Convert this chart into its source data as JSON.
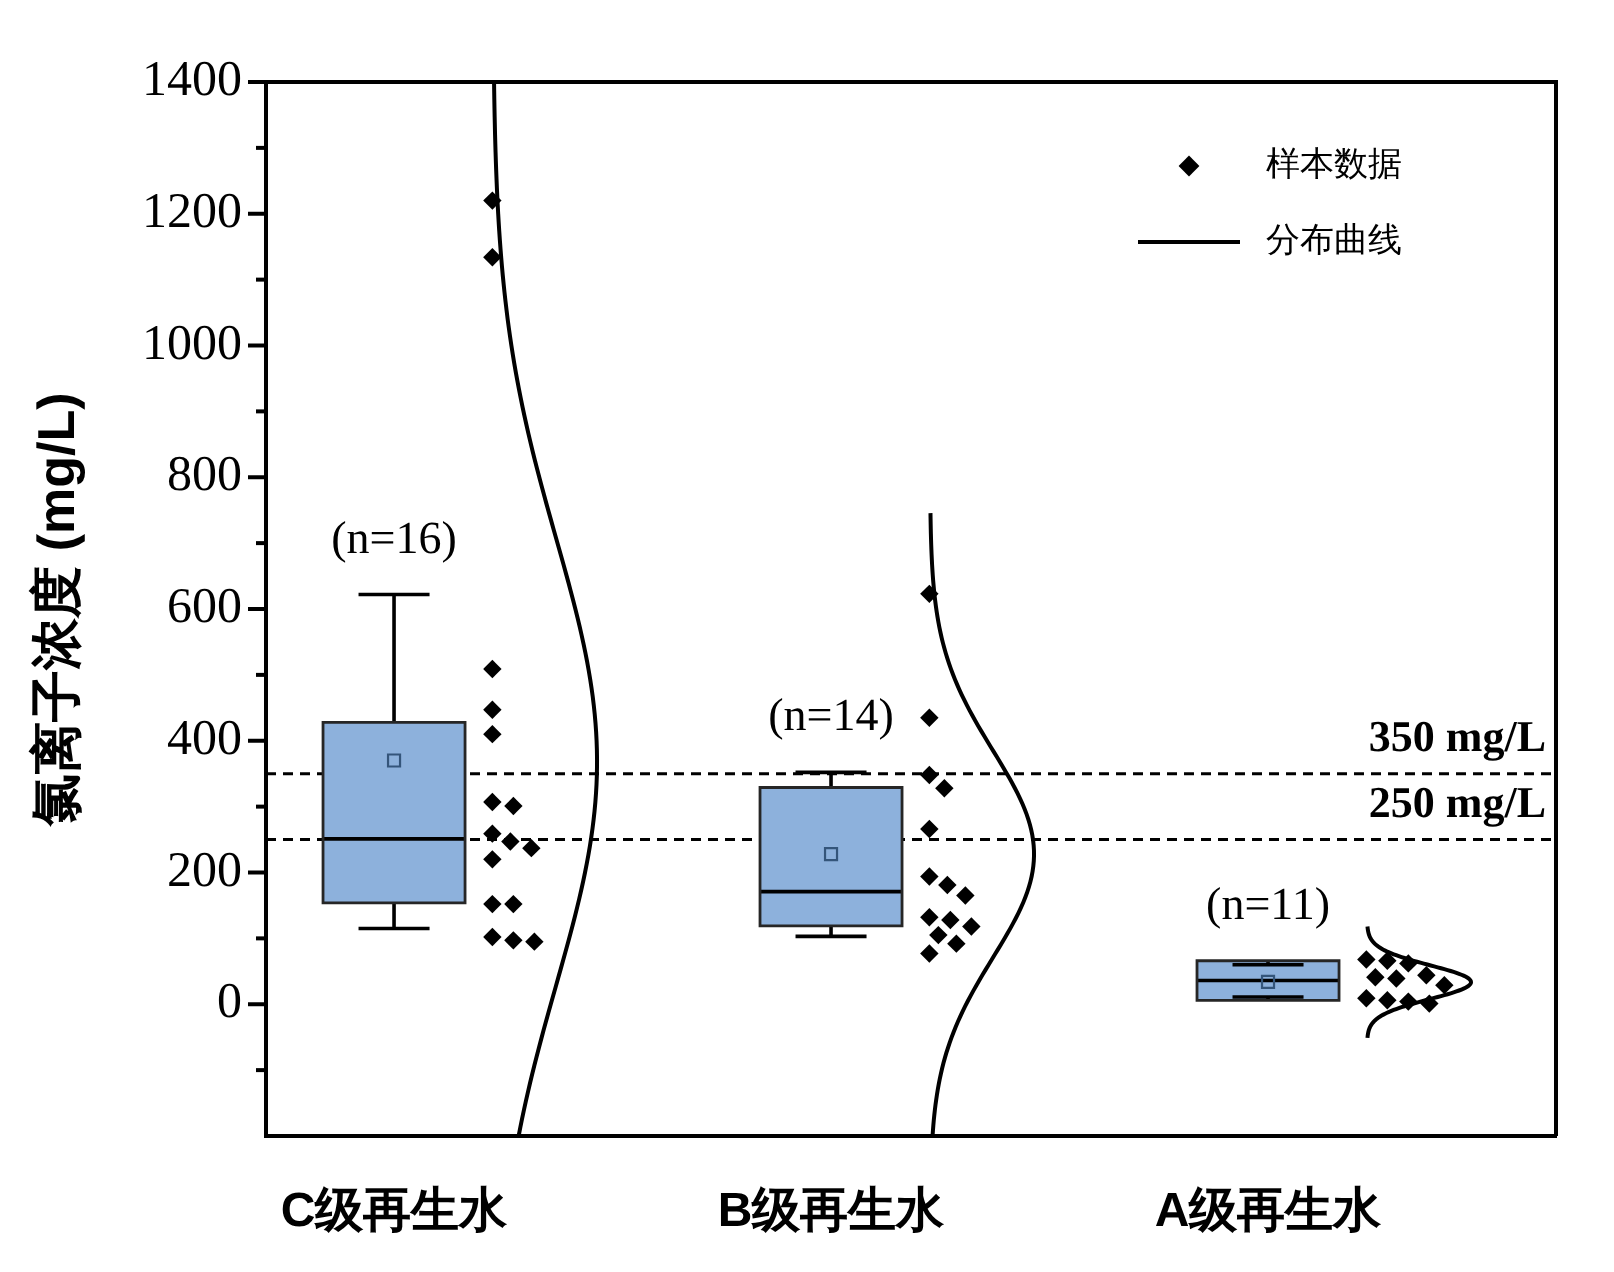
{
  "chart_data": {
    "type": "box",
    "ylabel": "氯离子浓度 (mg/L)",
    "categories": [
      "C级再生水",
      "B级再生水",
      "A级再生水"
    ],
    "series": [
      {
        "type": "box",
        "color": "#8db1dc",
        "boxes": [
          {
            "low": 115,
            "q1": 154,
            "median": 251,
            "q3": 428,
            "high": 622,
            "mean": 370
          },
          {
            "low": 103,
            "q1": 119,
            "median": 171,
            "q3": 329,
            "high": 352,
            "mean": 228
          },
          {
            "low": 11,
            "q1": 6,
            "median": 36,
            "q3": 66,
            "high": 60,
            "mean": 34
          }
        ]
      },
      {
        "name": "样本数据",
        "type": "scatter",
        "color": "#000000",
        "marker": "diamond",
        "x": [
          "C级再生水",
          "C级再生水",
          "C级再生水",
          "C级再生水",
          "C级再生水",
          "C级再生水",
          "C级再生水",
          "C级再生水",
          "C级再生水",
          "C级再生水",
          "C级再生水",
          "C级再生水",
          "C级再生水",
          "C级再生水",
          "C级再生水",
          "C级再生水",
          "B级再生水",
          "B级再生水",
          "B级再生水",
          "B级再生水",
          "B级再生水",
          "B级再生水",
          "B级再生水",
          "B级再生水",
          "B级再生水",
          "B级再生水",
          "B级再生水",
          "B级再生水",
          "B级再生水",
          "B级再生水",
          "A级再生水",
          "A级再生水",
          "A级再生水",
          "A级再生水",
          "A级再生水",
          "A级再生水",
          "A级再生水",
          "A级再生水",
          "A级再生水",
          "A级再生水",
          "A级再生水"
        ],
        "values": [
          1220,
          1134,
          509,
          447,
          410,
          307,
          301,
          259,
          247,
          237,
          220,
          152,
          152,
          102,
          97,
          95,
          623,
          435,
          348,
          328,
          266,
          194,
          181,
          165,
          132,
          128,
          118,
          105,
          92,
          77,
          68,
          66,
          62,
          44,
          41,
          39,
          29,
          9,
          6,
          4,
          1
        ]
      }
    ],
    "ylim": [
      -200,
      1400
    ],
    "yticks": [
      {
        "value": -100,
        "label": null
      },
      0,
      {
        "value": 100,
        "label": null
      },
      200,
      {
        "value": 300,
        "label": null
      },
      400,
      {
        "value": 500,
        "label": null
      },
      600,
      {
        "value": 700,
        "label": null
      },
      800,
      {
        "value": 900,
        "label": null
      },
      1000,
      {
        "value": 1100,
        "label": null
      },
      1200,
      {
        "value": 1300,
        "label": null
      },
      1400
    ],
    "ref_lines": [
      {
        "axis": "y",
        "value": 350,
        "label": "350 mg/L",
        "color": "#000000",
        "line_style": "dashed"
      },
      {
        "axis": "y",
        "value": 250,
        "label": "250 mg/L",
        "color": "#000000",
        "line_style": "dashed"
      }
    ],
    "annotations": [
      "(n=16)",
      "(n=14)",
      "(n=11)",
      "分布曲线"
    ],
    "legend": "top right"
  }
}
